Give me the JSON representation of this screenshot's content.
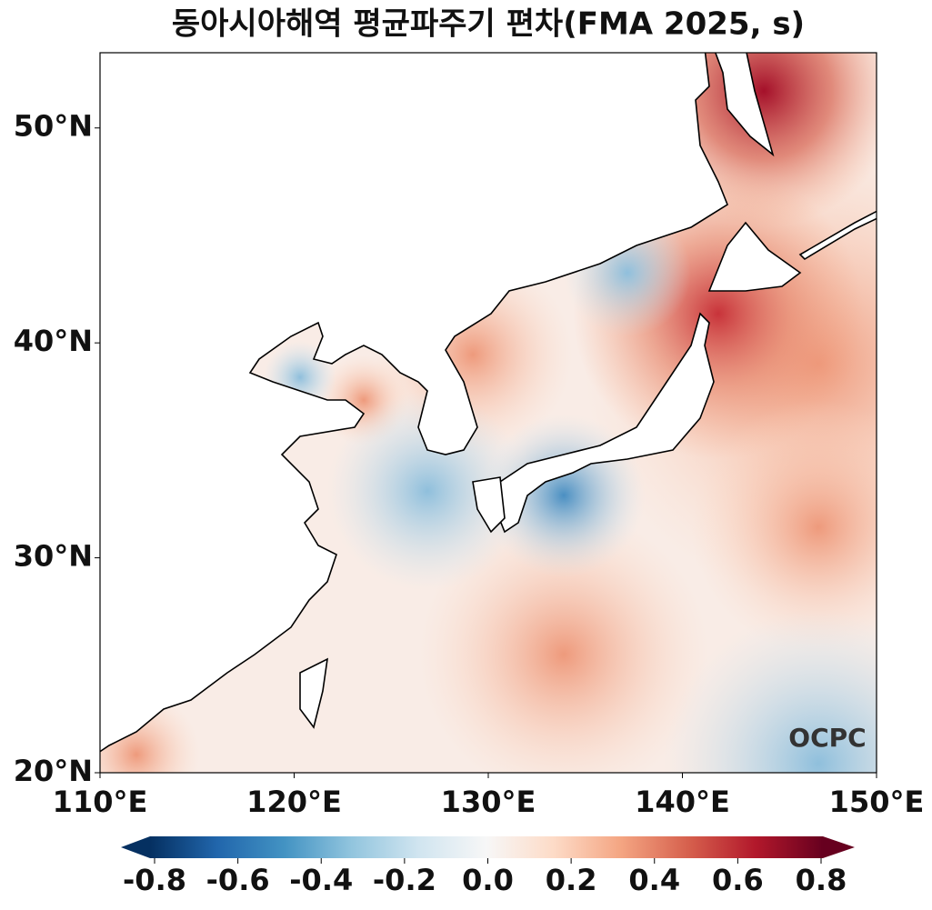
{
  "chart_data": {
    "type": "map",
    "title": "동아시아해역 평균파주기 편차(FMA 2025, s)",
    "xlim": [
      110,
      150
    ],
    "ylim": [
      20,
      53.5
    ],
    "xticks": [
      {
        "value": 110,
        "label": "110°E"
      },
      {
        "value": 120,
        "label": "120°E"
      },
      {
        "value": 130,
        "label": "130°E"
      },
      {
        "value": 140,
        "label": "140°E"
      },
      {
        "value": 150,
        "label": "150°E"
      }
    ],
    "yticks": [
      {
        "value": 20,
        "label": "20°N"
      },
      {
        "value": 30,
        "label": "30°N"
      },
      {
        "value": 40,
        "label": "40°N"
      },
      {
        "value": 50,
        "label": "50°N"
      }
    ],
    "colorbar": {
      "lim": [
        -0.8,
        0.8
      ],
      "ticks": [
        -0.8,
        -0.6,
        -0.4,
        -0.2,
        {
          "value": 0,
          "label": "0.0"
        },
        0.2,
        0.4,
        0.6,
        0.8
      ]
    },
    "watermark": "OCPC"
  }
}
